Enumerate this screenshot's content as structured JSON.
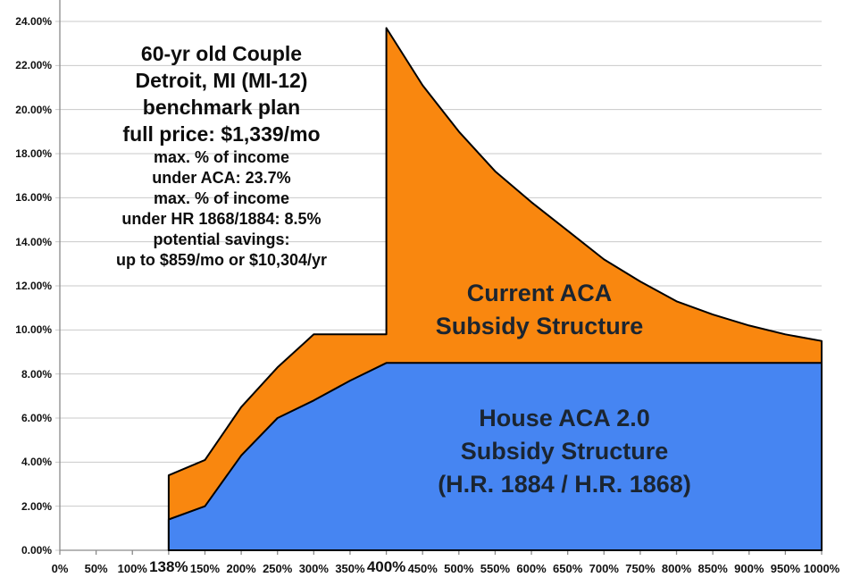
{
  "page": {
    "background": "#FFFFFF"
  },
  "annotation": {
    "lines_large": [
      "60-yr old Couple",
      "Detroit, MI (MI-12)",
      "benchmark plan",
      "full price: $1,339/mo"
    ],
    "lines_small": [
      "max. % of income",
      "under ACA: 23.7%",
      "max. % of income",
      "under HR 1868/1884: 8.5%",
      "potential savings:",
      "up to $859/mo or $10,304/yr"
    ]
  },
  "series_labels": {
    "aca": [
      "Current ACA",
      "Subsidy Structure"
    ],
    "house": [
      "House ACA 2.0",
      "Subsidy Structure",
      "(H.R. 1884 / H.R. 1868)"
    ]
  },
  "chart_data": {
    "type": "area",
    "grid": true,
    "legend": "none",
    "ylim": [
      0,
      25
    ],
    "x_axis": {
      "categories": [
        "0%",
        "50%",
        "100%",
        "138%",
        "150%",
        "200%",
        "250%",
        "300%",
        "350%",
        "400%",
        "450%",
        "500%",
        "550%",
        "600%",
        "650%",
        "700%",
        "750%",
        "800%",
        "850%",
        "900%",
        "950%",
        "1000%"
      ],
      "emphasized_ticks": [
        "138%",
        "400%"
      ]
    },
    "y_axis": {
      "tick_labels": [
        "0.00%",
        "2.00%",
        "4.00%",
        "6.00%",
        "8.00%",
        "10.00%",
        "12.00%",
        "14.00%",
        "16.00%",
        "18.00%",
        "20.00%",
        "22.00%",
        "24.00%"
      ],
      "tick_values": [
        0,
        2,
        4,
        6,
        8,
        10,
        12,
        14,
        16,
        18,
        20,
        22,
        24
      ]
    },
    "series": [
      {
        "name": "Current ACA Subsidy Structure",
        "key": "aca",
        "color": "#F9870F",
        "points": [
          [
            "138%",
            3.4
          ],
          [
            "150%",
            4.1
          ],
          [
            "200%",
            6.5
          ],
          [
            "250%",
            8.3
          ],
          [
            "300%",
            9.8
          ],
          [
            "350%",
            9.8
          ],
          [
            "400%",
            9.8
          ],
          [
            "400%",
            23.7
          ],
          [
            "450%",
            21.1
          ],
          [
            "500%",
            19.0
          ],
          [
            "550%",
            17.2
          ],
          [
            "600%",
            15.8
          ],
          [
            "650%",
            14.5
          ],
          [
            "700%",
            13.2
          ],
          [
            "750%",
            12.2
          ],
          [
            "800%",
            11.3
          ],
          [
            "850%",
            10.7
          ],
          [
            "900%",
            10.2
          ],
          [
            "950%",
            9.8
          ],
          [
            "1000%",
            9.5
          ]
        ]
      },
      {
        "name": "House ACA 2.0 Subsidy Structure (H.R. 1884 / H.R. 1868)",
        "key": "house",
        "color": "#4685F2",
        "points": [
          [
            "138%",
            1.4
          ],
          [
            "150%",
            2.0
          ],
          [
            "200%",
            4.3
          ],
          [
            "250%",
            6.0
          ],
          [
            "300%",
            6.8
          ],
          [
            "350%",
            7.7
          ],
          [
            "400%",
            8.5
          ],
          [
            "450%",
            8.5
          ],
          [
            "500%",
            8.5
          ],
          [
            "550%",
            8.5
          ],
          [
            "600%",
            8.5
          ],
          [
            "650%",
            8.5
          ],
          [
            "700%",
            8.5
          ],
          [
            "750%",
            8.5
          ],
          [
            "800%",
            8.5
          ],
          [
            "850%",
            8.5
          ],
          [
            "900%",
            8.5
          ],
          [
            "950%",
            8.5
          ],
          [
            "1000%",
            8.5
          ]
        ]
      }
    ],
    "colors": {
      "outline": "#000000",
      "gridline": "#C9C9C9",
      "axis": "#8A8A8A",
      "tick_label": "#111111",
      "annotation_text": "#0D0D0D",
      "area_label_text": "#1B2531"
    }
  }
}
